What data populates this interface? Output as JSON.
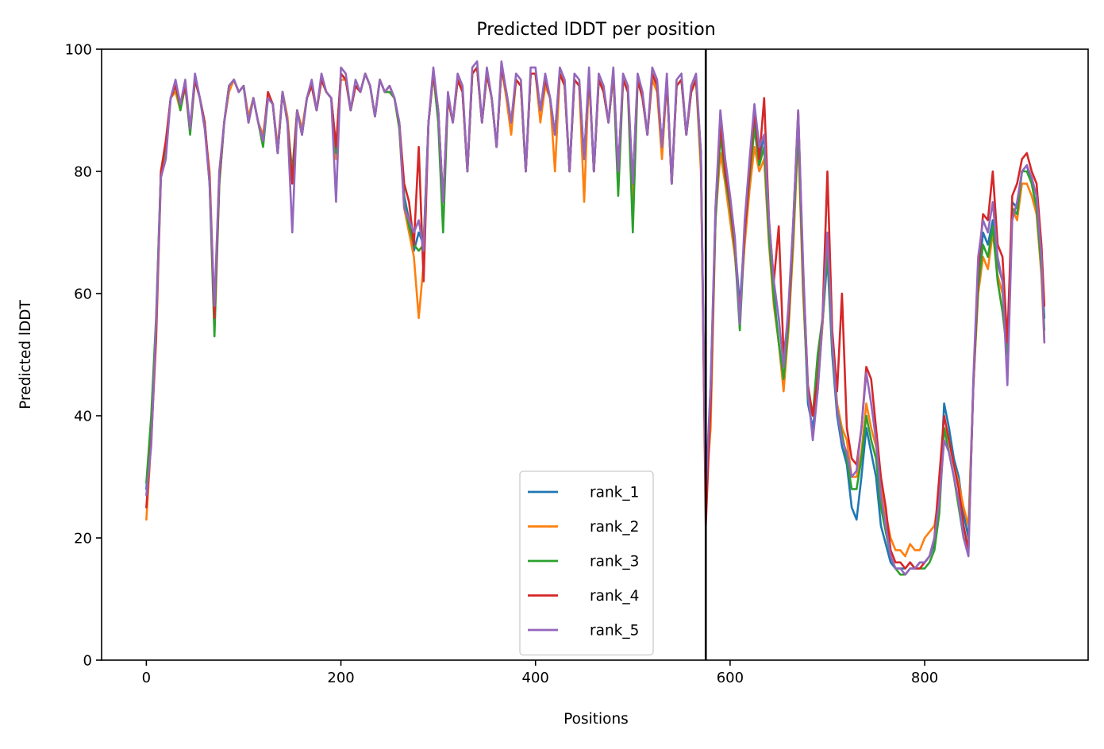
{
  "chart_data": {
    "type": "line",
    "title": "Predicted lDDT per position",
    "xlabel": "Positions",
    "ylabel": "Predicted lDDT",
    "xlim": [
      -46,
      968
    ],
    "ylim": [
      0,
      100
    ],
    "xticks": [
      0,
      200,
      400,
      600,
      800
    ],
    "yticks": [
      0,
      20,
      40,
      60,
      80,
      100
    ],
    "grid": false,
    "legend_position": "lower center",
    "vertical_line": {
      "x": 575,
      "color": "#000000"
    },
    "x": [
      0,
      5,
      10,
      15,
      20,
      25,
      30,
      35,
      40,
      45,
      50,
      55,
      60,
      65,
      70,
      75,
      80,
      85,
      90,
      95,
      100,
      105,
      110,
      115,
      120,
      125,
      130,
      135,
      140,
      145,
      150,
      155,
      160,
      165,
      170,
      175,
      180,
      185,
      190,
      195,
      200,
      205,
      210,
      215,
      220,
      225,
      230,
      235,
      240,
      245,
      250,
      255,
      260,
      265,
      270,
      275,
      280,
      285,
      290,
      295,
      300,
      305,
      310,
      315,
      320,
      325,
      330,
      335,
      340,
      345,
      350,
      355,
      360,
      365,
      370,
      375,
      380,
      385,
      390,
      395,
      400,
      405,
      410,
      415,
      420,
      425,
      430,
      435,
      440,
      445,
      450,
      455,
      460,
      465,
      470,
      475,
      480,
      485,
      490,
      495,
      500,
      505,
      510,
      515,
      520,
      525,
      530,
      535,
      540,
      545,
      550,
      555,
      560,
      565,
      570,
      575,
      580,
      585,
      590,
      595,
      600,
      605,
      610,
      615,
      620,
      625,
      630,
      635,
      640,
      645,
      650,
      655,
      660,
      665,
      670,
      675,
      680,
      685,
      690,
      695,
      700,
      705,
      710,
      715,
      720,
      725,
      730,
      735,
      740,
      745,
      750,
      755,
      760,
      765,
      770,
      775,
      780,
      785,
      790,
      795,
      800,
      805,
      810,
      815,
      820,
      825,
      830,
      835,
      840,
      845,
      850,
      855,
      860,
      865,
      870,
      875,
      880,
      885,
      890,
      895,
      900,
      905,
      910,
      915,
      920,
      923
    ],
    "series": [
      {
        "name": "rank_1",
        "color": "#1f77b4",
        "values": [
          28,
          38,
          55,
          80,
          84,
          92,
          94,
          91,
          94,
          87,
          95,
          92,
          88,
          78,
          56,
          78,
          88,
          94,
          95,
          93,
          94,
          88,
          92,
          88,
          85,
          92,
          91,
          83,
          93,
          88,
          80,
          90,
          86,
          92,
          94,
          90,
          95,
          93,
          92,
          84,
          96,
          95,
          90,
          94,
          93,
          96,
          94,
          89,
          95,
          93,
          94,
          92,
          88,
          76,
          72,
          67,
          70,
          68,
          88,
          96,
          90,
          75,
          92,
          88,
          95,
          93,
          80,
          96,
          97,
          88,
          96,
          92,
          84,
          97,
          93,
          88,
          95,
          94,
          80,
          96,
          96,
          90,
          95,
          92,
          86,
          96,
          94,
          80,
          95,
          94,
          82,
          96,
          80,
          95,
          93,
          88,
          96,
          80,
          95,
          93,
          78,
          95,
          92,
          86,
          96,
          94,
          84,
          95,
          78,
          94,
          95,
          86,
          93,
          95,
          83,
          25,
          45,
          72,
          88,
          80,
          75,
          68,
          58,
          70,
          80,
          88,
          82,
          86,
          70,
          60,
          52,
          45,
          55,
          70,
          88,
          62,
          42,
          38,
          44,
          55,
          66,
          50,
          40,
          35,
          32,
          25,
          23,
          30,
          38,
          34,
          30,
          22,
          19,
          16,
          15,
          15,
          15,
          16,
          15,
          16,
          16,
          17,
          19,
          25,
          42,
          38,
          33,
          30,
          24,
          20,
          45,
          62,
          70,
          68,
          72,
          65,
          62,
          50,
          75,
          74,
          80,
          81,
          78,
          74,
          65,
          56
        ]
      },
      {
        "name": "rank_2",
        "color": "#ff7f0e",
        "values": [
          23,
          36,
          52,
          79,
          83,
          92,
          93,
          90,
          94,
          87,
          95,
          92,
          87,
          80,
          57,
          80,
          88,
          93,
          95,
          93,
          94,
          89,
          92,
          88,
          86,
          92,
          91,
          84,
          93,
          89,
          79,
          90,
          87,
          92,
          94,
          90,
          95,
          93,
          92,
          82,
          95,
          95,
          90,
          94,
          93,
          96,
          94,
          89,
          95,
          93,
          93,
          92,
          87,
          74,
          70,
          66,
          56,
          65,
          88,
          96,
          90,
          75,
          92,
          88,
          95,
          93,
          80,
          96,
          97,
          88,
          96,
          92,
          84,
          97,
          92,
          86,
          95,
          94,
          80,
          96,
          96,
          88,
          94,
          92,
          80,
          96,
          94,
          80,
          95,
          94,
          75,
          96,
          80,
          95,
          93,
          88,
          96,
          80,
          95,
          93,
          74,
          95,
          92,
          86,
          95,
          93,
          82,
          95,
          78,
          94,
          95,
          86,
          93,
          95,
          80,
          27,
          38,
          72,
          83,
          78,
          72,
          66,
          57,
          68,
          77,
          84,
          80,
          82,
          68,
          58,
          52,
          44,
          54,
          68,
          86,
          60,
          44,
          40,
          45,
          55,
          68,
          52,
          42,
          38,
          36,
          30,
          30,
          34,
          42,
          38,
          35,
          28,
          24,
          20,
          18,
          18,
          17,
          19,
          18,
          18,
          20,
          21,
          22,
          27,
          38,
          36,
          32,
          29,
          25,
          22,
          45,
          60,
          66,
          64,
          70,
          63,
          60,
          50,
          74,
          72,
          78,
          78,
          76,
          73,
          63,
          52
        ]
      },
      {
        "name": "rank_3",
        "color": "#2ca02c",
        "values": [
          29,
          40,
          56,
          80,
          84,
          92,
          94,
          90,
          94,
          86,
          95,
          92,
          88,
          78,
          53,
          78,
          88,
          94,
          95,
          93,
          94,
          88,
          92,
          88,
          84,
          92,
          91,
          83,
          93,
          88,
          79,
          90,
          86,
          92,
          94,
          90,
          95,
          93,
          92,
          83,
          96,
          95,
          90,
          94,
          93,
          96,
          94,
          89,
          95,
          93,
          93,
          92,
          87,
          75,
          71,
          68,
          67,
          68,
          88,
          96,
          88,
          70,
          92,
          88,
          95,
          93,
          80,
          96,
          97,
          88,
          96,
          92,
          84,
          97,
          93,
          88,
          95,
          94,
          80,
          96,
          96,
          90,
          95,
          92,
          86,
          96,
          94,
          80,
          95,
          94,
          82,
          96,
          80,
          95,
          93,
          88,
          96,
          76,
          95,
          93,
          70,
          95,
          92,
          86,
          96,
          94,
          84,
          95,
          78,
          94,
          95,
          86,
          93,
          95,
          82,
          26,
          42,
          72,
          86,
          79,
          74,
          67,
          54,
          70,
          79,
          87,
          81,
          84,
          69,
          59,
          52,
          46,
          55,
          70,
          87,
          62,
          43,
          40,
          50,
          56,
          67,
          51,
          41,
          37,
          33,
          28,
          28,
          33,
          40,
          36,
          33,
          25,
          21,
          17,
          15,
          14,
          14,
          15,
          15,
          15,
          15,
          16,
          18,
          24,
          38,
          34,
          30,
          25,
          20,
          19,
          45,
          61,
          68,
          66,
          71,
          62,
          57,
          50,
          74,
          73,
          80,
          80,
          78,
          74,
          64,
          54
        ]
      },
      {
        "name": "rank_4",
        "color": "#d62728",
        "values": [
          25,
          36,
          53,
          80,
          85,
          92,
          94,
          91,
          94,
          87,
          95,
          92,
          88,
          79,
          56,
          79,
          88,
          94,
          95,
          93,
          94,
          88,
          92,
          88,
          85,
          93,
          91,
          83,
          93,
          88,
          78,
          90,
          86,
          92,
          94,
          90,
          95,
          93,
          92,
          84,
          96,
          95,
          90,
          94,
          93,
          96,
          94,
          89,
          95,
          93,
          94,
          92,
          88,
          78,
          75,
          68,
          84,
          62,
          88,
          96,
          90,
          75,
          92,
          88,
          95,
          93,
          80,
          96,
          97,
          88,
          96,
          92,
          84,
          97,
          93,
          88,
          95,
          94,
          80,
          96,
          96,
          90,
          95,
          92,
          86,
          96,
          94,
          80,
          95,
          94,
          82,
          96,
          80,
          95,
          93,
          88,
          96,
          80,
          95,
          93,
          78,
          95,
          92,
          86,
          96,
          94,
          84,
          95,
          78,
          94,
          95,
          86,
          93,
          95,
          83,
          22,
          42,
          74,
          88,
          80,
          75,
          68,
          56,
          70,
          80,
          90,
          82,
          92,
          72,
          62,
          71,
          50,
          56,
          72,
          90,
          64,
          45,
          40,
          46,
          56,
          80,
          54,
          44,
          60,
          38,
          33,
          32,
          38,
          48,
          46,
          38,
          30,
          25,
          18,
          16,
          16,
          15,
          16,
          15,
          15,
          16,
          17,
          20,
          30,
          40,
          36,
          32,
          28,
          22,
          18,
          45,
          64,
          73,
          72,
          80,
          68,
          66,
          52,
          76,
          78,
          82,
          83,
          80,
          78,
          68,
          58
        ]
      },
      {
        "name": "rank_5",
        "color": "#9467bd",
        "values": [
          27,
          35,
          55,
          79,
          82,
          92,
          95,
          91,
          95,
          87,
          96,
          92,
          87,
          78,
          58,
          80,
          88,
          94,
          95,
          93,
          94,
          88,
          92,
          88,
          85,
          92,
          91,
          83,
          93,
          88,
          70,
          90,
          86,
          92,
          95,
          90,
          96,
          93,
          92,
          75,
          97,
          96,
          90,
          95,
          93,
          96,
          94,
          89,
          95,
          93,
          94,
          92,
          88,
          74,
          72,
          70,
          72,
          67,
          88,
          97,
          90,
          75,
          93,
          88,
          96,
          94,
          80,
          97,
          98,
          88,
          97,
          92,
          84,
          98,
          93,
          88,
          96,
          95,
          80,
          97,
          97,
          90,
          96,
          92,
          86,
          97,
          95,
          80,
          96,
          95,
          82,
          97,
          80,
          96,
          94,
          88,
          97,
          80,
          96,
          94,
          78,
          96,
          93,
          86,
          97,
          95,
          84,
          96,
          78,
          95,
          96,
          86,
          94,
          96,
          83,
          28,
          45,
          74,
          90,
          82,
          76,
          69,
          55,
          72,
          82,
          91,
          84,
          86,
          72,
          62,
          56,
          48,
          58,
          72,
          90,
          65,
          44,
          36,
          44,
          56,
          70,
          52,
          41,
          36,
          34,
          30,
          31,
          38,
          47,
          42,
          36,
          27,
          22,
          17,
          15,
          15,
          14,
          15,
          15,
          16,
          16,
          17,
          20,
          26,
          36,
          34,
          30,
          26,
          20,
          17,
          46,
          66,
          72,
          70,
          75,
          66,
          62,
          45,
          72,
          75,
          80,
          81,
          79,
          76,
          66,
          52
        ]
      }
    ]
  }
}
